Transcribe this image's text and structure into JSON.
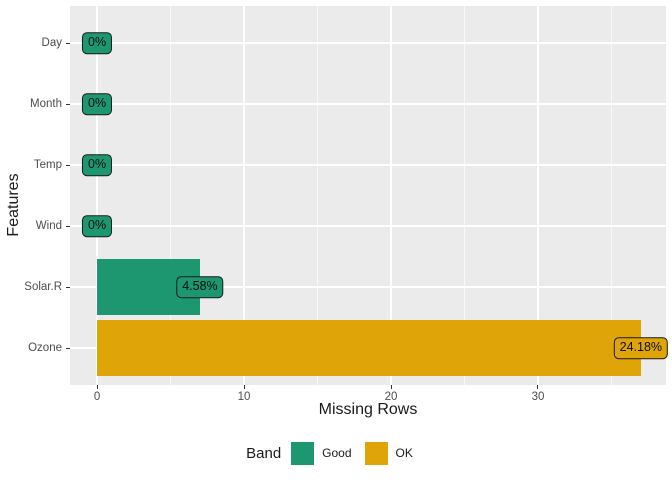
{
  "colors": {
    "panel_bg": "#EBEBEB",
    "grid": "#FFFFFF",
    "tick_label": "#4D4D4D",
    "axis_title": "#1A1A1A",
    "band_good": "#1D9770",
    "band_ok": "#DFA407"
  },
  "chart_data": {
    "type": "bar",
    "orientation": "horizontal",
    "title": "",
    "xlabel": "Missing Rows",
    "ylabel": "Features",
    "categories": [
      "Day",
      "Month",
      "Temp",
      "Wind",
      "Solar.R",
      "Ozone"
    ],
    "values": [
      0,
      0,
      0,
      0,
      7,
      37
    ],
    "bar_labels": [
      "0%",
      "0%",
      "0%",
      "0%",
      "4.58%",
      "24.18%"
    ],
    "bands": [
      "Good",
      "Good",
      "Good",
      "Good",
      "Good",
      "OK"
    ],
    "xlim": [
      -1.84,
      38.71
    ],
    "x_ticks": [
      0,
      10,
      20,
      30
    ],
    "x_tick_labels": [
      "0",
      "10",
      "20",
      "30"
    ],
    "x_minor_ticks": [
      5,
      15,
      25,
      35
    ],
    "grid": true,
    "legend": {
      "title": "Band",
      "position": "bottom",
      "entries": [
        {
          "label": "Good",
          "color": "#1D9770"
        },
        {
          "label": "OK",
          "color": "#DFA407"
        }
      ]
    }
  }
}
